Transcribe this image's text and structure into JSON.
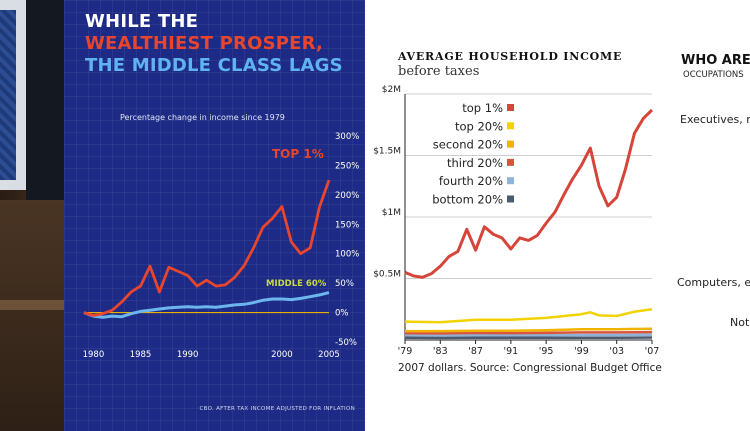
{
  "blue_panel": {
    "title_line1": "WHILE THE",
    "title_line2": "WEALTHIEST PROSPER,",
    "title_line3": "THE MIDDLE CLASS LAGS",
    "subtitle": "Percentage change in income since 1979",
    "source": "CBO. AFTER TAX INCOME ADJUSTED FOR INFLATION",
    "colors": {
      "background": "#1e2b86",
      "top": "#e8452c",
      "middle": "#6cb6ee",
      "zero": "#e5b000",
      "middle_label": "#c8d940"
    }
  },
  "nyt_panel": {
    "title": "AVERAGE HOUSEHOLD INCOME",
    "subtitle": "before taxes",
    "source": "2007 dollars. Source: Congressional Budget Office"
  },
  "who_panel": {
    "title": "WHO ARE",
    "subtitle": "OCCUPATIONS",
    "row1": "Executives, m",
    "row2": "Computers, e",
    "row3": "Not"
  },
  "chart_data": [
    {
      "type": "line",
      "title": "",
      "subtitle": "Percentage change in income since 1979",
      "xlabel": "",
      "ylabel": "",
      "xlim": [
        1979,
        2005
      ],
      "ylim": [
        -50,
        300
      ],
      "x_ticks": [
        "1980",
        "1985",
        "1990",
        "2000",
        "2005"
      ],
      "x_tick_values": [
        1980,
        1985,
        1990,
        2000,
        2005
      ],
      "y_ticks": [
        "300%",
        "250%",
        "200%",
        "150%",
        "100%",
        "50%",
        "0%",
        "-50%"
      ],
      "y_tick_values": [
        300,
        250,
        200,
        150,
        100,
        50,
        0,
        -50
      ],
      "series": [
        {
          "name": "TOP 1%",
          "color": "#e8452c",
          "x": [
            1979,
            1980,
            1981,
            1982,
            1983,
            1984,
            1985,
            1986,
            1987,
            1988,
            1989,
            1990,
            1991,
            1992,
            1993,
            1994,
            1995,
            1996,
            1997,
            1998,
            1999,
            2000,
            2001,
            2002,
            2003,
            2004,
            2005
          ],
          "y": [
            0,
            -5,
            -2,
            4,
            18,
            35,
            45,
            79,
            35,
            77,
            70,
            63,
            45,
            55,
            45,
            47,
            60,
            80,
            110,
            145,
            160,
            180,
            120,
            100,
            110,
            180,
            225
          ]
        },
        {
          "name": "MIDDLE 60%",
          "color": "#6cb6ee",
          "x": [
            1979,
            1980,
            1981,
            1982,
            1983,
            1984,
            1985,
            1986,
            1987,
            1988,
            1989,
            1990,
            1991,
            1992,
            1993,
            1994,
            1995,
            1996,
            1997,
            1998,
            1999,
            2000,
            2001,
            2002,
            2003,
            2004,
            2005
          ],
          "y": [
            0,
            -6,
            -8,
            -6,
            -7,
            -2,
            2,
            4,
            6,
            8,
            9,
            10,
            9,
            10,
            9,
            11,
            13,
            14,
            17,
            21,
            23,
            23,
            22,
            24,
            27,
            30,
            34
          ]
        }
      ]
    },
    {
      "type": "line",
      "title": "AVERAGE HOUSEHOLD INCOME",
      "subtitle": "before taxes",
      "xlabel": "",
      "ylabel": "",
      "xlim": [
        1979,
        2007
      ],
      "ylim": [
        0,
        2000000
      ],
      "x_ticks": [
        "'79",
        "'83",
        "'87",
        "'91",
        "'95",
        "'99",
        "'03",
        "'07"
      ],
      "x_tick_values": [
        1979,
        1983,
        1987,
        1991,
        1995,
        1999,
        2003,
        2007
      ],
      "y_ticks": [
        "$0.5M",
        "$1M",
        "$1.5M",
        "$2M"
      ],
      "y_tick_values": [
        500000,
        1000000,
        1500000,
        2000000
      ],
      "grid": true,
      "legend_placement": "top-left",
      "series": [
        {
          "name": "top 1%",
          "color": "#d6453a",
          "x": [
            1979,
            1980,
            1981,
            1982,
            1983,
            1984,
            1985,
            1986,
            1987,
            1988,
            1989,
            1990,
            1991,
            1992,
            1993,
            1994,
            1995,
            1996,
            1997,
            1998,
            1999,
            2000,
            2001,
            2002,
            2003,
            2004,
            2005,
            2006,
            2007
          ],
          "y": [
            550000,
            520000,
            510000,
            540000,
            600000,
            680000,
            720000,
            900000,
            730000,
            920000,
            860000,
            830000,
            740000,
            830000,
            810000,
            850000,
            950000,
            1040000,
            1180000,
            1310000,
            1420000,
            1560000,
            1250000,
            1090000,
            1160000,
            1390000,
            1680000,
            1800000,
            1870000
          ]
        },
        {
          "name": "top 20%",
          "color": "#f2d200",
          "x": [
            1979,
            1983,
            1987,
            1991,
            1995,
            1999,
            2000,
            2001,
            2003,
            2005,
            2007
          ],
          "y": [
            150000,
            145000,
            165000,
            165000,
            180000,
            210000,
            225000,
            200000,
            195000,
            230000,
            250000
          ]
        },
        {
          "name": "second 20%",
          "color": "#f0b300",
          "x": [
            1979,
            1983,
            1987,
            1991,
            1995,
            1999,
            2003,
            2007
          ],
          "y": [
            72000,
            72000,
            76000,
            76000,
            80000,
            88000,
            88000,
            92000
          ]
        },
        {
          "name": "third 20%",
          "color": "#d9553e",
          "x": [
            1979,
            1983,
            1987,
            1991,
            1995,
            1999,
            2003,
            2007
          ],
          "y": [
            55000,
            54000,
            57000,
            56000,
            58000,
            62000,
            62000,
            64000
          ]
        },
        {
          "name": "fourth 20%",
          "color": "#8fb3d6",
          "x": [
            1979,
            1983,
            1987,
            1991,
            1995,
            1999,
            2003,
            2007
          ],
          "y": [
            38000,
            37000,
            39000,
            38000,
            39000,
            41000,
            41000,
            42000
          ]
        },
        {
          "name": "bottom 20%",
          "color": "#4a5a70",
          "x": [
            1979,
            1983,
            1987,
            1991,
            1995,
            1999,
            2003,
            2007
          ],
          "y": [
            18000,
            17000,
            18000,
            18000,
            18000,
            19000,
            19000,
            20000
          ]
        }
      ]
    }
  ]
}
